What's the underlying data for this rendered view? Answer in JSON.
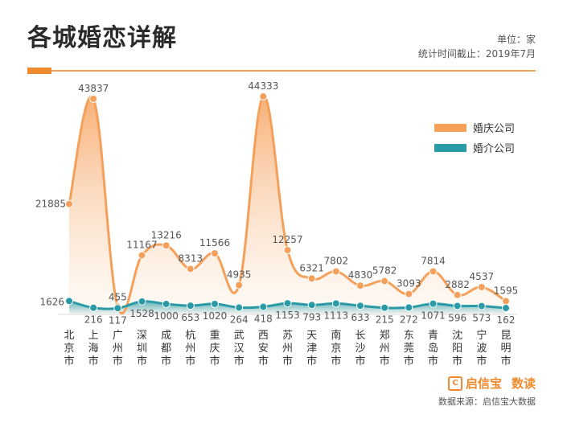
{
  "header": {
    "title": "各城婚恋详解",
    "unit": "单位：家",
    "date": "统计时间截止：2019年7月"
  },
  "legend": {
    "wedding": "婚庆公司",
    "matchmaking": "婚介公司"
  },
  "footer": {
    "brand": "启信宝",
    "brand_mark": "C",
    "brand_sub": "数读",
    "source": "数据来源：启信宝大数据"
  },
  "colors": {
    "wedding": "#f5a05a",
    "matchmaking": "#2a9aa6",
    "accent": "#f08a2e"
  },
  "chart_data": {
    "type": "line",
    "title": "各城婚恋详解",
    "xlabel": "",
    "ylabel": "单位：家",
    "ylim": [
      0,
      46000
    ],
    "categories": [
      "北京市",
      "上海市",
      "广州市",
      "深圳市",
      "成都市",
      "杭州市",
      "重庆市",
      "武汉市",
      "西安市",
      "苏州市",
      "天津市",
      "南京市",
      "长沙市",
      "郑州市",
      "东莞市",
      "青岛市",
      "沈阳市",
      "宁波市",
      "昆明市"
    ],
    "series": [
      {
        "name": "婚庆公司",
        "values": [
          21885,
          43837,
          455,
          11167,
          13216,
          8313,
          11566,
          4935,
          44333,
          12257,
          6321,
          7802,
          4830,
          5782,
          3093,
          7814,
          2882,
          4537,
          1595
        ]
      },
      {
        "name": "婚介公司",
        "values": [
          1626,
          216,
          117,
          1528,
          1000,
          653,
          1020,
          264,
          418,
          1153,
          793,
          1113,
          633,
          215,
          272,
          1071,
          596,
          573,
          162
        ]
      }
    ]
  }
}
